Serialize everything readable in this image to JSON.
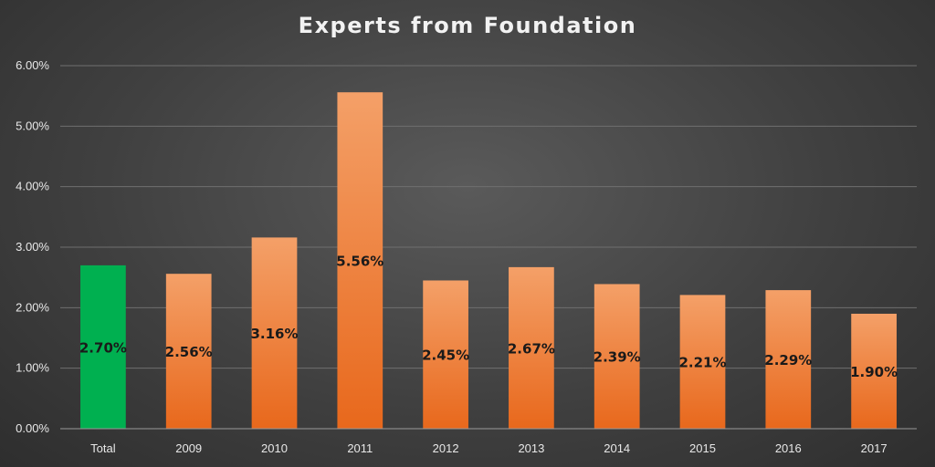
{
  "chart_data": {
    "type": "bar",
    "title": "Experts from Foundation",
    "xlabel": "",
    "ylabel": "",
    "categories": [
      "Total",
      "2009",
      "2010",
      "2011",
      "2012",
      "2013",
      "2014",
      "2015",
      "2016",
      "2017"
    ],
    "values": [
      2.7,
      2.56,
      3.16,
      5.56,
      2.45,
      2.67,
      2.39,
      2.21,
      2.29,
      1.9
    ],
    "data_labels": [
      "2.70%",
      "2.56%",
      "3.16%",
      "5.56%",
      "2.45%",
      "2.67%",
      "2.39%",
      "2.21%",
      "2.29%",
      "1.90%"
    ],
    "ylim": [
      0,
      6
    ],
    "yticks": [
      "0.00%",
      "1.00%",
      "2.00%",
      "3.00%",
      "4.00%",
      "5.00%",
      "6.00%"
    ],
    "grid": true,
    "legend": "none",
    "colors": {
      "total_bar": "#00b050",
      "bar_top": "#f4a068",
      "bar_bottom": "#e8681c"
    }
  }
}
